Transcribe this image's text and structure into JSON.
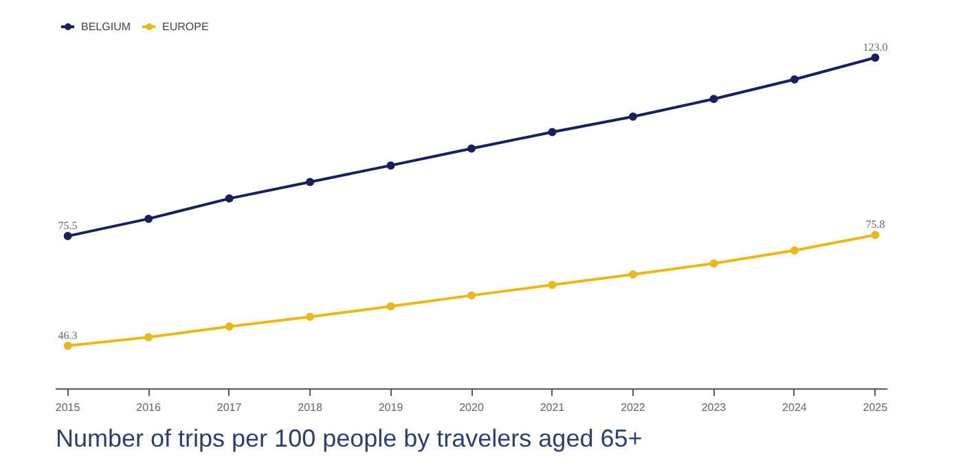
{
  "chart_data": {
    "type": "line",
    "title": "Number of trips per 100 people by travelers aged 65+",
    "x": [
      2015,
      2016,
      2017,
      2018,
      2019,
      2020,
      2021,
      2022,
      2023,
      2024,
      2025
    ],
    "xlim": [
      2014.85,
      2025.15
    ],
    "xticks": [
      2015,
      2016,
      2017,
      2018,
      2019,
      2020,
      2021,
      2022,
      2023,
      2024,
      2025
    ],
    "tick_labels": "x",
    "legend": "top left",
    "marker": "circle",
    "line_style": "solid",
    "series": [
      {
        "name": "BELGIUM",
        "color": "#1b1f5c",
        "values": [
          75.5,
          80.1,
          85.5,
          89.9,
          94.3,
          98.8,
          103.2,
          107.3,
          112.0,
          117.2,
          123.0
        ],
        "value_labels": [
          "75.5",
          null,
          null,
          null,
          null,
          null,
          null,
          null,
          null,
          null,
          "123.0"
        ]
      },
      {
        "name": "EUROPE",
        "color": "#e8b820",
        "values": [
          46.3,
          48.6,
          51.4,
          54.0,
          56.8,
          59.7,
          62.5,
          65.3,
          68.2,
          71.7,
          75.8
        ],
        "value_labels": [
          "46.3",
          null,
          null,
          null,
          null,
          null,
          null,
          null,
          null,
          null,
          "75.8"
        ]
      }
    ]
  }
}
